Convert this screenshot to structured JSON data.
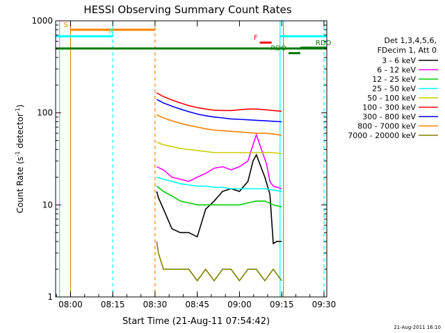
{
  "chart_data": {
    "type": "line",
    "title": "HESSI Observing Summary Count Rates",
    "xlabel": "Start Time (21-Aug-11 07:54:42)",
    "ylabel_main": "Count Rate (s",
    "ylabel_sup1": "-1",
    "ylabel_mid": " detector",
    "ylabel_sup2": "-1",
    "ylabel_end": ")",
    "ylog": true,
    "ylim": [
      1,
      1000
    ],
    "xlim": [
      7.9117,
      9.5167
    ],
    "x_ticks": [
      {
        "value": 8.0,
        "label": "08:00"
      },
      {
        "value": 8.25,
        "label": "08:15"
      },
      {
        "value": 8.5,
        "label": "08:30"
      },
      {
        "value": 8.75,
        "label": "08:45"
      },
      {
        "value": 9.0,
        "label": "09:00"
      },
      {
        "value": 9.25,
        "label": "09:15"
      },
      {
        "value": 9.5,
        "label": "09:30"
      }
    ],
    "y_ticks": [
      {
        "value": 1,
        "label": "1"
      },
      {
        "value": 10,
        "label": "10"
      },
      {
        "value": 100,
        "label": "100"
      },
      {
        "value": 1000,
        "label": "1000"
      }
    ],
    "timestamp": "21-Aug-2011 16:10",
    "legend": {
      "placement": "right",
      "header": [
        "Det 1,3,4,5,6,",
        "FDecim 1, Att 0"
      ]
    },
    "series": [
      {
        "name": "3 - 6 keV",
        "color": "#000000",
        "x": [
          8.51,
          8.52,
          8.55,
          8.6,
          8.65,
          8.7,
          8.75,
          8.8,
          8.85,
          8.9,
          8.95,
          9.0,
          9.05,
          9.08,
          9.1,
          9.15,
          9.18,
          9.2,
          9.22,
          9.25
        ],
        "y": [
          14,
          12,
          9,
          5.5,
          5,
          5,
          4.5,
          9,
          11,
          14,
          15,
          14,
          18,
          30,
          35,
          20,
          13,
          3.8,
          4,
          4
        ]
      },
      {
        "name": "6 - 12 keV",
        "color": "#ff00ff",
        "x": [
          8.51,
          8.55,
          8.6,
          8.65,
          8.7,
          8.75,
          8.8,
          8.85,
          8.9,
          8.95,
          9.0,
          9.05,
          9.08,
          9.1,
          9.13,
          9.16,
          9.18,
          9.2,
          9.25
        ],
        "y": [
          26,
          24,
          20,
          19,
          18,
          20,
          22,
          25,
          26,
          24,
          26,
          30,
          45,
          58,
          40,
          28,
          18,
          16,
          15
        ]
      },
      {
        "name": "12 - 25 keV",
        "color": "#00cc00",
        "x": [
          8.51,
          8.55,
          8.6,
          8.65,
          8.7,
          8.75,
          8.8,
          8.85,
          8.9,
          8.95,
          9.0,
          9.05,
          9.1,
          9.15,
          9.2,
          9.25
        ],
        "y": [
          16,
          14,
          12.5,
          11,
          10.5,
          10,
          10,
          10,
          10,
          10,
          10,
          10.5,
          11,
          11,
          10,
          9.5
        ]
      },
      {
        "name": "25 - 50 keV",
        "color": "#00ffff",
        "x": [
          8.51,
          8.55,
          8.6,
          8.65,
          8.7,
          8.75,
          8.8,
          8.85,
          8.9,
          8.95,
          9.0,
          9.05,
          9.1,
          9.15,
          9.2,
          9.25
        ],
        "y": [
          20,
          19,
          18,
          17,
          16.5,
          16,
          16,
          15.5,
          15.5,
          15,
          15,
          15,
          15,
          15,
          14.5,
          14
        ]
      },
      {
        "name": "50 - 100 keV",
        "color": "#cccc00",
        "x": [
          8.51,
          8.55,
          8.6,
          8.65,
          8.7,
          8.75,
          8.8,
          8.85,
          8.9,
          8.95,
          9.0,
          9.05,
          9.1,
          9.15,
          9.2,
          9.25
        ],
        "y": [
          48,
          45,
          43,
          41,
          40,
          39,
          38,
          37,
          37,
          37,
          37,
          37,
          37,
          37,
          37,
          36
        ]
      },
      {
        "name": "100 - 300 keV",
        "color": "#ff0000",
        "x": [
          8.51,
          8.55,
          8.6,
          8.65,
          8.7,
          8.75,
          8.8,
          8.85,
          8.9,
          8.95,
          9.0,
          9.05,
          9.1,
          9.15,
          9.2,
          9.25
        ],
        "y": [
          165,
          150,
          138,
          128,
          120,
          114,
          110,
          107,
          106,
          106,
          108,
          110,
          110,
          108,
          106,
          104
        ]
      },
      {
        "name": "300 - 800 keV",
        "color": "#0000ff",
        "x": [
          8.51,
          8.55,
          8.6,
          8.65,
          8.7,
          8.75,
          8.8,
          8.85,
          8.9,
          8.95,
          9.0,
          9.05,
          9.1,
          9.15,
          9.2,
          9.25
        ],
        "y": [
          140,
          128,
          118,
          110,
          103,
          97,
          93,
          90,
          88,
          86,
          85,
          84,
          83,
          82,
          81,
          80
        ]
      },
      {
        "name": "800 - 7000 keV",
        "color": "#ff8000",
        "x": [
          8.51,
          8.55,
          8.6,
          8.65,
          8.7,
          8.75,
          8.8,
          8.85,
          8.9,
          8.95,
          9.0,
          9.05,
          9.1,
          9.15,
          9.2,
          9.25
        ],
        "y": [
          95,
          88,
          82,
          77,
          73,
          70,
          67,
          65,
          64,
          63,
          62,
          61,
          60,
          60,
          59,
          57
        ]
      },
      {
        "name": "7000 - 20000 keV",
        "color": "#808000",
        "x": [
          8.51,
          8.52,
          8.55,
          8.6,
          8.65,
          8.7,
          8.75,
          8.8,
          8.85,
          8.9,
          8.95,
          9.0,
          9.05,
          9.1,
          9.15,
          9.2,
          9.25
        ],
        "y": [
          4,
          3,
          2,
          2,
          2,
          2,
          1.5,
          2,
          1.5,
          2,
          2,
          1.5,
          2,
          2,
          1.5,
          2,
          1.5
        ]
      }
    ],
    "flags": [
      {
        "label": "S",
        "color": "#ff8000",
        "x": [
          8.0,
          8.5
        ],
        "y": 800
      },
      {
        "label": "N",
        "color": "#00ffff",
        "x": [
          7.9117,
          8.25
        ],
        "y": 680
      },
      {
        "label": "F",
        "color": "#ff0000",
        "x": [
          9.12,
          9.19
        ],
        "y": 580
      },
      {
        "label": "RDO",
        "color": "#007700",
        "x": [
          9.36,
          9.5167
        ],
        "y": 510
      },
      {
        "label": "RDO",
        "color": "#007700",
        "x": [
          9.29,
          9.36
        ],
        "y": 445
      },
      {
        "label": "",
        "color": "#00ffff",
        "x": [
          9.24,
          9.5167
        ],
        "y": 680
      }
    ],
    "saa_line": {
      "color": "#007700",
      "x": [
        7.9117,
        9.5167
      ],
      "y": 500
    },
    "markers": [
      {
        "x": 8.0,
        "color": "#cc8800",
        "style": "solid"
      },
      {
        "x": 8.5,
        "color": "#ff8000",
        "style": "dashed"
      },
      {
        "x": 7.935,
        "color": "#00ffff",
        "style": "solid"
      },
      {
        "x": 8.25,
        "color": "#00ffff",
        "style": "dashed"
      },
      {
        "x": 9.24,
        "color": "#00ffff",
        "style": "solid"
      },
      {
        "x": 9.5,
        "color": "#00ffff",
        "style": "dashed"
      },
      {
        "x": 9.26,
        "color": "#cc8800",
        "style": "solid"
      }
    ]
  }
}
